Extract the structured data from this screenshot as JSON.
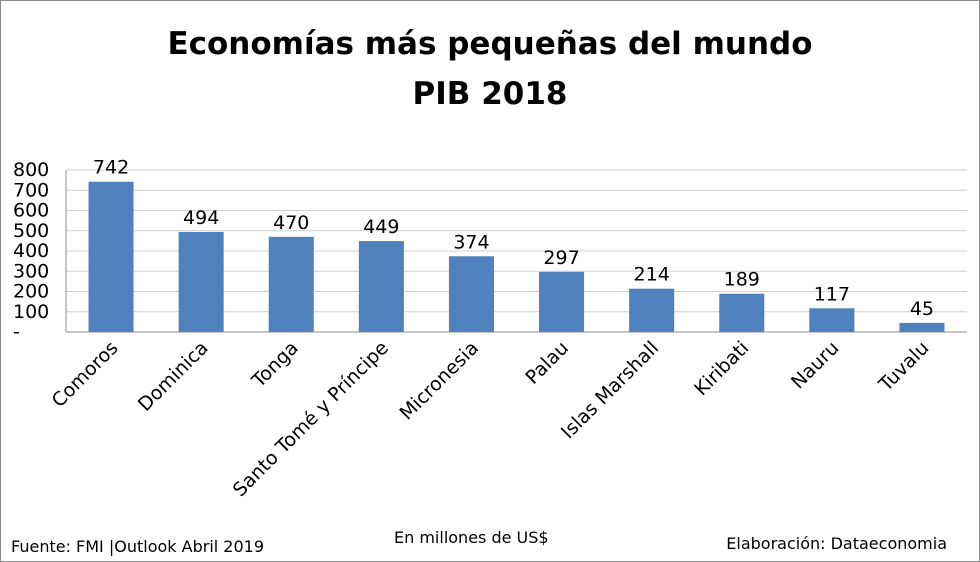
{
  "chart_data": {
    "type": "bar",
    "title": "Economías más pequeñas del mundo",
    "subtitle": "PIB 2018",
    "categories": [
      "Comoros",
      "Dominica",
      "Tonga",
      "Santo Tomé y Príncipe",
      "Micronesia",
      "Palau",
      "Islas Marshall",
      "Kiribati",
      "Nauru",
      "Tuvalu"
    ],
    "values": [
      742,
      494,
      470,
      449,
      374,
      297,
      214,
      189,
      117,
      45
    ],
    "data_labels": [
      "742",
      "494",
      "470",
      "449",
      "374",
      "297",
      "214",
      "189",
      "117",
      "45"
    ],
    "ytick_values": [
      0,
      100,
      200,
      300,
      400,
      500,
      600,
      700,
      800
    ],
    "ytick_labels": [
      "-",
      "100",
      "200",
      "300",
      "400",
      "500",
      "600",
      "700",
      "800"
    ],
    "ylim": [
      0,
      800
    ],
    "xlabel": "En millones de US$",
    "ylabel": "",
    "grid": true,
    "legend": "none",
    "bar_color": "#4F81BD"
  },
  "footer": {
    "source": "Fuente: FMI |Outlook Abril 2019",
    "units": "En millones de US$",
    "credit": "Elaboración: Dataeconomia"
  }
}
